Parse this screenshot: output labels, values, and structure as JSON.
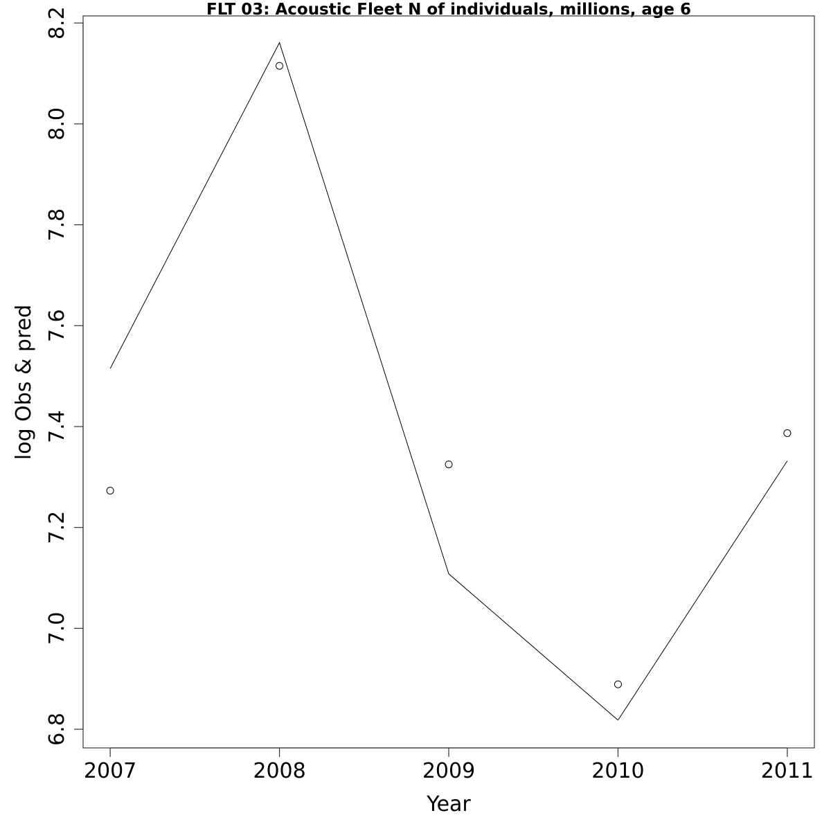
{
  "chart_data": {
    "type": "line",
    "title": "FLT 03: Acoustic Fleet  N of individuals, millions, age 6",
    "xlabel": "Year",
    "ylabel": "log Obs & pred",
    "x": [
      2007,
      2008,
      2009,
      2010,
      2011
    ],
    "xlim": [
      2006.84,
      2011.16
    ],
    "ylim": [
      6.763,
      8.214
    ],
    "xticks": [
      2007,
      2008,
      2009,
      2010,
      2011
    ],
    "yticks": [
      6.8,
      7.0,
      7.2,
      7.4,
      7.6,
      7.8,
      8.0,
      8.2
    ],
    "ytick_labels": [
      "6.8",
      "7.0",
      "7.2",
      "7.4",
      "7.6",
      "7.8",
      "8.0",
      "8.2"
    ],
    "grid": false,
    "series": [
      {
        "kind": "line",
        "values": [
          7.515,
          8.161,
          7.108,
          6.818,
          7.332
        ]
      },
      {
        "kind": "points",
        "marker": "open-circle",
        "values": [
          7.273,
          8.115,
          7.325,
          6.889,
          7.387
        ]
      }
    ]
  }
}
